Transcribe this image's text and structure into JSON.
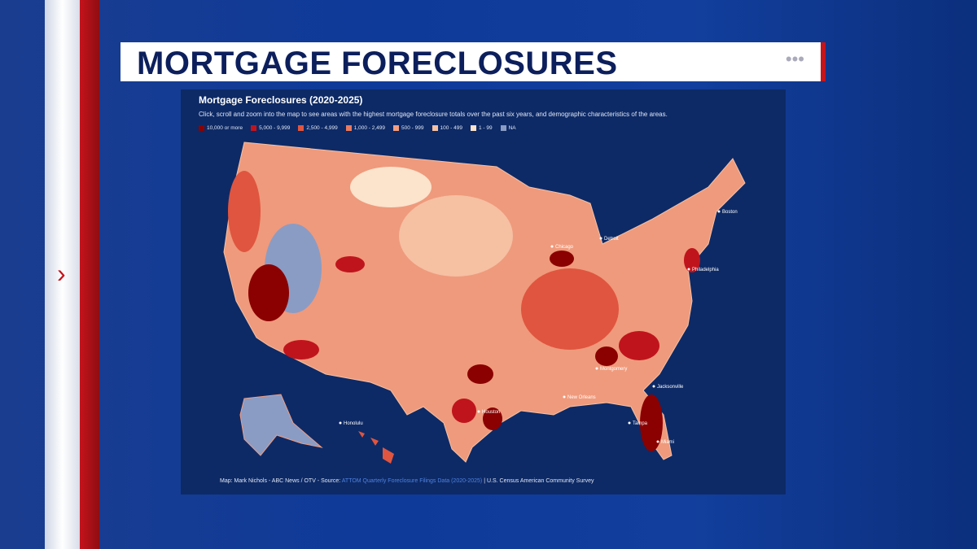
{
  "header": {
    "title": "MORTGAGE FORECLOSURES"
  },
  "map": {
    "title": "Mortgage Foreclosures (2020-2025)",
    "subtitle": "Click, scroll and zoom into the map to see areas with the highest mortgage foreclosure totals over the past six years, and demographic characteristics of the areas.",
    "legend": [
      {
        "label": "10,000 or more",
        "color": "#8b0000"
      },
      {
        "label": "5,000 - 9,999",
        "color": "#c0141c"
      },
      {
        "label": "2,500 - 4,999",
        "color": "#e0553f"
      },
      {
        "label": "1,000 - 2,499",
        "color": "#ea7a5e"
      },
      {
        "label": "500 - 999",
        "color": "#f29d7f"
      },
      {
        "label": "100 - 499",
        "color": "#f6c0a3"
      },
      {
        "label": "1 - 99",
        "color": "#fbe3cc"
      },
      {
        "label": "NA",
        "color": "#8a9cc4"
      }
    ],
    "cities": [
      "Chicago",
      "Detroit",
      "Boston",
      "Philadelphia",
      "Montgomery",
      "Jacksonville",
      "Tampa",
      "Miami",
      "Houston",
      "New Orleans",
      "Honolulu"
    ],
    "credit": "Map: Mark Nichols - ABC News / OTV - Source:",
    "source_link": "ATTOM Quarterly Foreclosure Filings Data (2020-2025)",
    "source_rest": "| U.S. Census American Community Survey"
  }
}
